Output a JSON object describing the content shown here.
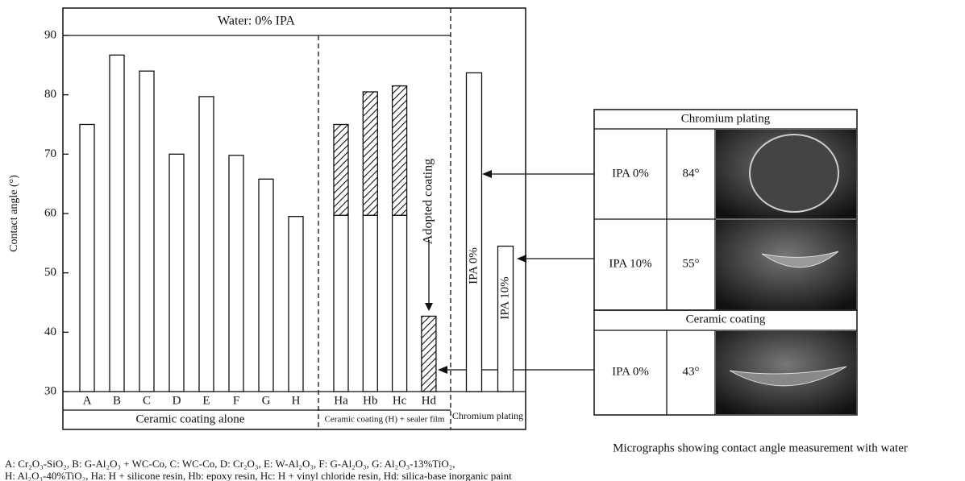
{
  "chart_data": {
    "type": "bar",
    "header": "Water: 0% IPA",
    "ylabel": "Contact angle (°)",
    "ylim": [
      30,
      90
    ],
    "yticks": [
      30,
      40,
      50,
      60,
      70,
      80,
      90
    ],
    "groups": [
      {
        "label": "Ceramic coating alone",
        "categories": [
          "A",
          "B",
          "C",
          "D",
          "E",
          "F",
          "G",
          "H"
        ],
        "values": [
          75,
          86.7,
          84,
          70,
          79.7,
          69.8,
          65.8,
          59.5
        ]
      },
      {
        "label": "Ceramic coating (H) + sealer film",
        "categories": [
          "Ha",
          "Hb",
          "Hc",
          "Hd"
        ],
        "values": [
          59.7,
          59.7,
          59.7,
          null
        ],
        "hatched_values": [
          15.3,
          20.8,
          21.8,
          42.7
        ]
      },
      {
        "label": "Chromium plating",
        "categories": [
          "IPA 0%",
          "IPA 10%"
        ],
        "values": [
          83.7,
          54.5
        ]
      }
    ],
    "annotation": "Adopted coating",
    "legend_lines": [
      "A: Cr₂O₃-SiO₂, B: G-Al₂O₃ + WC-Co, C: WC-Co, D: Cr₂O₃, E: W-Al₂O₃, F: G-Al₂O₃, G: Al₂O₃-13%TiO₂,",
      "H: Al₂O₃-40%TiO₂, Ha: H + silicone resin, Hb: epoxy resin, Hc: H + vinyl chloride resin, Hd: silica-base inorganic paint"
    ],
    "micrographs": {
      "caption": "Micrographs showing contact angle measurement with water",
      "tables": [
        {
          "title": "Chromium plating",
          "rows": [
            {
              "condition": "IPA 0%",
              "angle": "84°"
            },
            {
              "condition": "IPA 10%",
              "angle": "55°"
            }
          ]
        },
        {
          "title": "Ceramic coating",
          "rows": [
            {
              "condition": "IPA 0%",
              "angle": "43°"
            }
          ]
        }
      ]
    }
  }
}
